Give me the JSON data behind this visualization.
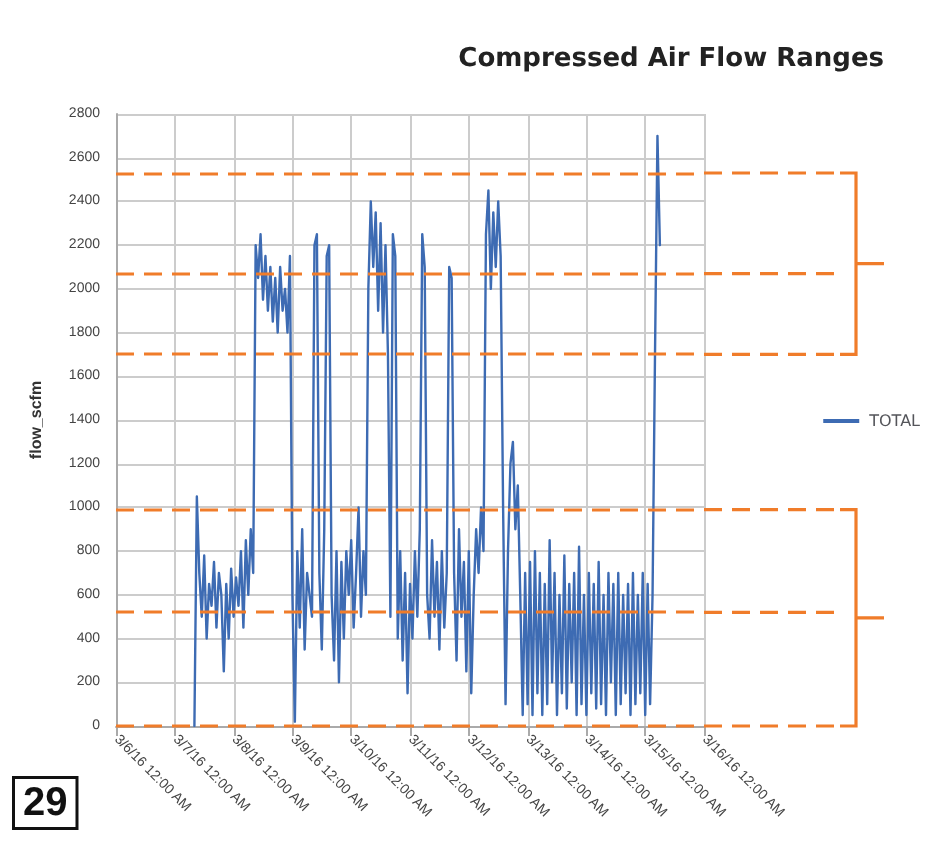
{
  "chart_data": {
    "type": "line",
    "title": "Compressed Air Flow Ranges",
    "ylabel": "flow_scfm",
    "x": [
      "--03-07T08:00",
      "--03-07T09:00",
      "--03-07T10:00",
      "--03-07T11:00",
      "--03-07T12:00",
      "--03-07T13:00",
      "--03-07T14:00",
      "--03-07T15:00",
      "--03-07T16:00",
      "--03-07T17:00",
      "--03-07T18:00",
      "--03-07T19:00",
      "--03-07T20:00",
      "--03-07T21:00",
      "--03-07T22:00",
      "--03-07T23:00",
      "--03-08T00:00",
      "--03-08T01:00",
      "--03-08T02:00",
      "--03-08T03:00",
      "--03-08T04:00",
      "--03-08T05:00",
      "--03-08T06:00",
      "--03-08T07:00",
      "--03-08T08:00",
      "--03-08T09:00",
      "--03-08T10:00",
      "--03-08T11:00",
      "--03-08T12:00",
      "--03-08T13:00",
      "--03-08T14:00",
      "--03-08T15:00",
      "--03-08T16:00",
      "--03-08T17:00",
      "--03-08T18:00",
      "--03-08T19:00",
      "--03-08T20:00",
      "--03-08T21:00",
      "--03-08T22:00",
      "--03-08T23:00",
      "--03-09T00:00",
      "--03-09T01:00",
      "--03-09T02:00",
      "--03-09T03:00",
      "--03-09T04:00",
      "--03-09T05:00",
      "--03-09T06:00",
      "--03-09T07:00",
      "--03-09T08:00",
      "--03-09T09:00",
      "--03-09T10:00",
      "--03-09T11:00",
      "--03-09T12:00",
      "--03-09T13:00",
      "--03-09T14:00",
      "--03-09T15:00",
      "--03-09T16:00",
      "--03-09T17:00",
      "--03-09T18:00",
      "--03-09T19:00",
      "--03-09T20:00",
      "--03-09T21:00",
      "--03-09T22:00",
      "--03-09T23:00",
      "--03-10T00:00",
      "--03-10T01:00",
      "--03-10T02:00",
      "--03-10T03:00",
      "--03-10T04:00",
      "--03-10T05:00",
      "--03-10T06:00",
      "--03-10T07:00",
      "--03-10T08:00",
      "--03-10T09:00",
      "--03-10T10:00",
      "--03-10T11:00",
      "--03-10T12:00",
      "--03-10T13:00",
      "--03-10T14:00",
      "--03-10T15:00",
      "--03-10T16:00",
      "--03-10T17:00",
      "--03-10T18:00",
      "--03-10T19:00",
      "--03-10T20:00",
      "--03-10T21:00",
      "--03-10T22:00",
      "--03-10T23:00",
      "--03-11T00:00",
      "--03-11T01:00",
      "--03-11T02:00",
      "--03-11T03:00",
      "--03-11T04:00",
      "--03-11T05:00",
      "--03-11T06:00",
      "--03-11T07:00",
      "--03-11T08:00",
      "--03-11T09:00",
      "--03-11T10:00",
      "--03-11T11:00",
      "--03-11T12:00",
      "--03-11T13:00",
      "--03-11T14:00",
      "--03-11T15:00",
      "--03-11T16:00",
      "--03-11T17:00",
      "--03-11T18:00",
      "--03-11T19:00",
      "--03-11T20:00",
      "--03-11T21:00",
      "--03-11T22:00",
      "--03-11T23:00",
      "--03-12T00:00",
      "--03-12T01:00",
      "--03-12T02:00",
      "--03-12T03:00",
      "--03-12T04:00",
      "--03-12T05:00",
      "--03-12T06:00",
      "--03-12T07:00",
      "--03-12T08:00",
      "--03-12T09:00",
      "--03-12T10:00",
      "--03-12T11:00",
      "--03-12T12:00",
      "--03-12T13:00",
      "--03-12T14:00",
      "--03-12T15:00",
      "--03-12T16:00",
      "--03-12T17:00",
      "--03-12T18:00",
      "--03-12T19:00",
      "--03-12T20:00",
      "--03-12T21:00",
      "--03-12T22:00",
      "--03-12T23:00",
      "--03-13T00:00",
      "--03-13T01:00",
      "--03-13T02:00",
      "--03-13T03:00",
      "--03-13T04:00",
      "--03-13T05:00",
      "--03-13T06:00",
      "--03-13T07:00",
      "--03-13T08:00",
      "--03-13T09:00",
      "--03-13T10:00",
      "--03-13T11:00",
      "--03-13T12:00",
      "--03-13T13:00",
      "--03-13T14:00",
      "--03-13T15:00",
      "--03-13T16:00",
      "--03-13T17:00",
      "--03-13T18:00",
      "--03-13T19:00",
      "--03-13T20:00",
      "--03-13T21:00",
      "--03-13T22:00",
      "--03-13T23:00",
      "--03-14T00:00",
      "--03-14T01:00",
      "--03-14T02:00",
      "--03-14T03:00",
      "--03-14T04:00",
      "--03-14T05:00",
      "--03-14T06:00",
      "--03-14T07:00",
      "--03-14T08:00",
      "--03-14T09:00",
      "--03-14T10:00",
      "--03-14T11:00",
      "--03-14T12:00",
      "--03-14T13:00",
      "--03-14T14:00",
      "--03-14T15:00",
      "--03-14T16:00",
      "--03-14T17:00",
      "--03-14T18:00",
      "--03-14T19:00",
      "--03-14T20:00",
      "--03-14T21:00",
      "--03-14T22:00",
      "--03-14T23:00",
      "--03-15T00:00",
      "--03-15T01:00",
      "--03-15T02:00",
      "--03-15T03:00",
      "--03-15T04:00",
      "--03-15T05:00",
      "--03-15T06:00"
    ],
    "series": [
      {
        "name": "TOTAL",
        "color": "#3d6bb3",
        "values": [
          0,
          1050,
          700,
          500,
          780,
          400,
          650,
          550,
          750,
          450,
          700,
          600,
          250,
          650,
          400,
          720,
          500,
          680,
          550,
          800,
          450,
          850,
          600,
          900,
          700,
          2200,
          2050,
          2250,
          1950,
          2150,
          1900,
          2100,
          1850,
          2050,
          1800,
          2100,
          1900,
          2000,
          1800,
          2150,
          600,
          20,
          800,
          450,
          900,
          350,
          700,
          600,
          500,
          2200,
          2250,
          700,
          350,
          900,
          2150,
          2200,
          600,
          300,
          800,
          200,
          750,
          400,
          800,
          600,
          850,
          450,
          700,
          1000,
          500,
          800,
          600,
          2000,
          2400,
          2100,
          2350,
          1900,
          2300,
          1800,
          2200,
          1700,
          500,
          2250,
          2150,
          400,
          800,
          300,
          700,
          150,
          650,
          400,
          800,
          500,
          900,
          2250,
          2100,
          600,
          400,
          850,
          500,
          750,
          350,
          800,
          450,
          700,
          2100,
          2050,
          700,
          300,
          900,
          500,
          750,
          250,
          800,
          150,
          600,
          900,
          700,
          1000,
          800,
          2250,
          2450,
          2000,
          2350,
          2100,
          2400,
          2150,
          1000,
          100,
          800,
          1200,
          1300,
          900,
          1100,
          600,
          50,
          700,
          100,
          750,
          50,
          800,
          150,
          700,
          50,
          650,
          100,
          850,
          200,
          700,
          50,
          600,
          150,
          780,
          80,
          650,
          200,
          700,
          50,
          820,
          100,
          600,
          50,
          700,
          150,
          650,
          80,
          750,
          100,
          600,
          50,
          700,
          200,
          650,
          50,
          700,
          100,
          600,
          150,
          650,
          50,
          700,
          100,
          600,
          150,
          700,
          50,
          650,
          100,
          600,
          1700,
          2700,
          2200
        ]
      }
    ],
    "xlim": [
      "--03-06",
      "--03-16"
    ],
    "xticks": [
      {
        "value": "--03-06",
        "label": "3/6/16 12:00 AM"
      },
      {
        "value": "--03-07",
        "label": "3/7/16 12:00 AM"
      },
      {
        "value": "--03-08",
        "label": "3/8/16 12:00 AM"
      },
      {
        "value": "--03-09",
        "label": "3/9/16 12:00 AM"
      },
      {
        "value": "--03-10",
        "label": "3/10/16 12:00 AM"
      },
      {
        "value": "--03-11",
        "label": "3/11/16 12:00 AM"
      },
      {
        "value": "--03-12",
        "label": "3/12/16 12:00 AM"
      },
      {
        "value": "--03-13",
        "label": "3/13/16 12:00 AM"
      },
      {
        "value": "--03-14",
        "label": "3/14/16 12:00 AM"
      },
      {
        "value": "--03-15",
        "label": "3/15/16 12:00 AM"
      },
      {
        "value": "--03-16",
        "label": "3/16/16 12:00 AM"
      }
    ],
    "ylim": [
      0,
      2800
    ],
    "yticks": [
      0,
      200,
      400,
      600,
      800,
      1000,
      1200,
      1400,
      1600,
      1800,
      2000,
      2200,
      2400,
      2600,
      2800
    ],
    "ref_lines": [
      {
        "axis": "y",
        "value": 2530,
        "color": "#f07c2a",
        "line_style": "dashed"
      },
      {
        "axis": "y",
        "value": 2070,
        "color": "#f07c2a",
        "line_style": "dashed"
      },
      {
        "axis": "y",
        "value": 1700,
        "color": "#f07c2a",
        "line_style": "dashed"
      },
      {
        "axis": "y",
        "value": 990,
        "color": "#f07c2a",
        "line_style": "dashed"
      },
      {
        "axis": "y",
        "value": 520,
        "color": "#f07c2a",
        "line_style": "dashed"
      },
      {
        "axis": "y",
        "value": 0,
        "color": "#f07c2a",
        "line_style": "dashed"
      }
    ],
    "annotations": [
      "29"
    ],
    "grid": true,
    "legend": "right",
    "marker": "none",
    "line_style": "solid"
  }
}
